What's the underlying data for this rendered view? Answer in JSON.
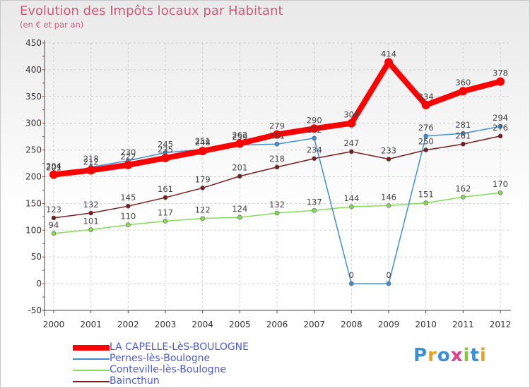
{
  "chart_data": {
    "type": "line",
    "title": "Evolution des Impôts locaux par Habitant",
    "subtitle": "(en € et par an)",
    "xlabel": "",
    "ylabel": "",
    "ylim": [
      -50,
      450
    ],
    "yticks": [
      -50,
      0,
      50,
      100,
      150,
      200,
      250,
      300,
      350,
      400,
      450
    ],
    "categories": [
      "2000",
      "2001",
      "2002",
      "2003",
      "2004",
      "2005",
      "2006",
      "2007",
      "2008",
      "2009",
      "2010",
      "2011",
      "2012"
    ],
    "legend_position": "bottom-left",
    "series": [
      {
        "name": "LA CAPELLE-LèS-BOULOGNE",
        "color": "#ff0000",
        "values": [
          204,
          212,
          222,
          235,
          248,
          262,
          279,
          290,
          300,
          414,
          334,
          360,
          378
        ]
      },
      {
        "name": "Pernes-lès-Boulogne",
        "color": "#3f8fd0",
        "values": [
          201,
          218,
          230,
          245,
          251,
          259,
          261,
          272,
          0,
          0,
          276,
          281,
          294
        ]
      },
      {
        "name": "Conteville-lès-Boulogne",
        "color": "#84dc54",
        "values": [
          94,
          101,
          110,
          117,
          122,
          124,
          132,
          137,
          144,
          146,
          151,
          162,
          170
        ]
      },
      {
        "name": "Baincthun",
        "color": "#7a1c1c",
        "values": [
          123,
          132,
          145,
          161,
          179,
          201,
          218,
          234,
          247,
          233,
          250,
          261,
          276
        ]
      }
    ]
  },
  "value_labels": {
    "LA CAPELLE-LèS-BOULOGNE": [
      "204",
      "212",
      "222",
      "235",
      "248",
      "262",
      "279",
      "290",
      "300",
      "414",
      "334",
      "360",
      "378"
    ],
    "Pernes-lès-Boulogne": [
      "201",
      "218",
      "230",
      "245",
      "251",
      "259",
      "261",
      "272",
      "0",
      "0",
      "276",
      "281",
      "294"
    ],
    "Conteville-lès-Boulogne": [
      "94",
      "101",
      "110",
      "117",
      "122",
      "124",
      "132",
      "137",
      "144",
      "146",
      "151",
      "162",
      "170"
    ],
    "Baincthun": [
      "123",
      "132",
      "145",
      "161",
      "179",
      "201",
      "218",
      "234",
      "247",
      "233",
      "250",
      "261",
      "276"
    ]
  },
  "legend": {
    "items": [
      "LA CAPELLE-LèS-BOULOGNE",
      "Pernes-lès-Boulogne",
      "Conteville-lès-Boulogne",
      "Baincthun"
    ]
  },
  "logo": {
    "text": "Proxiti",
    "letter_colors": [
      "#3a8fd6",
      "#e8a21c",
      "#3a8fd6",
      "#e83a8a",
      "#8ac43f",
      "#3a8fd6",
      "#e8a21c"
    ]
  }
}
